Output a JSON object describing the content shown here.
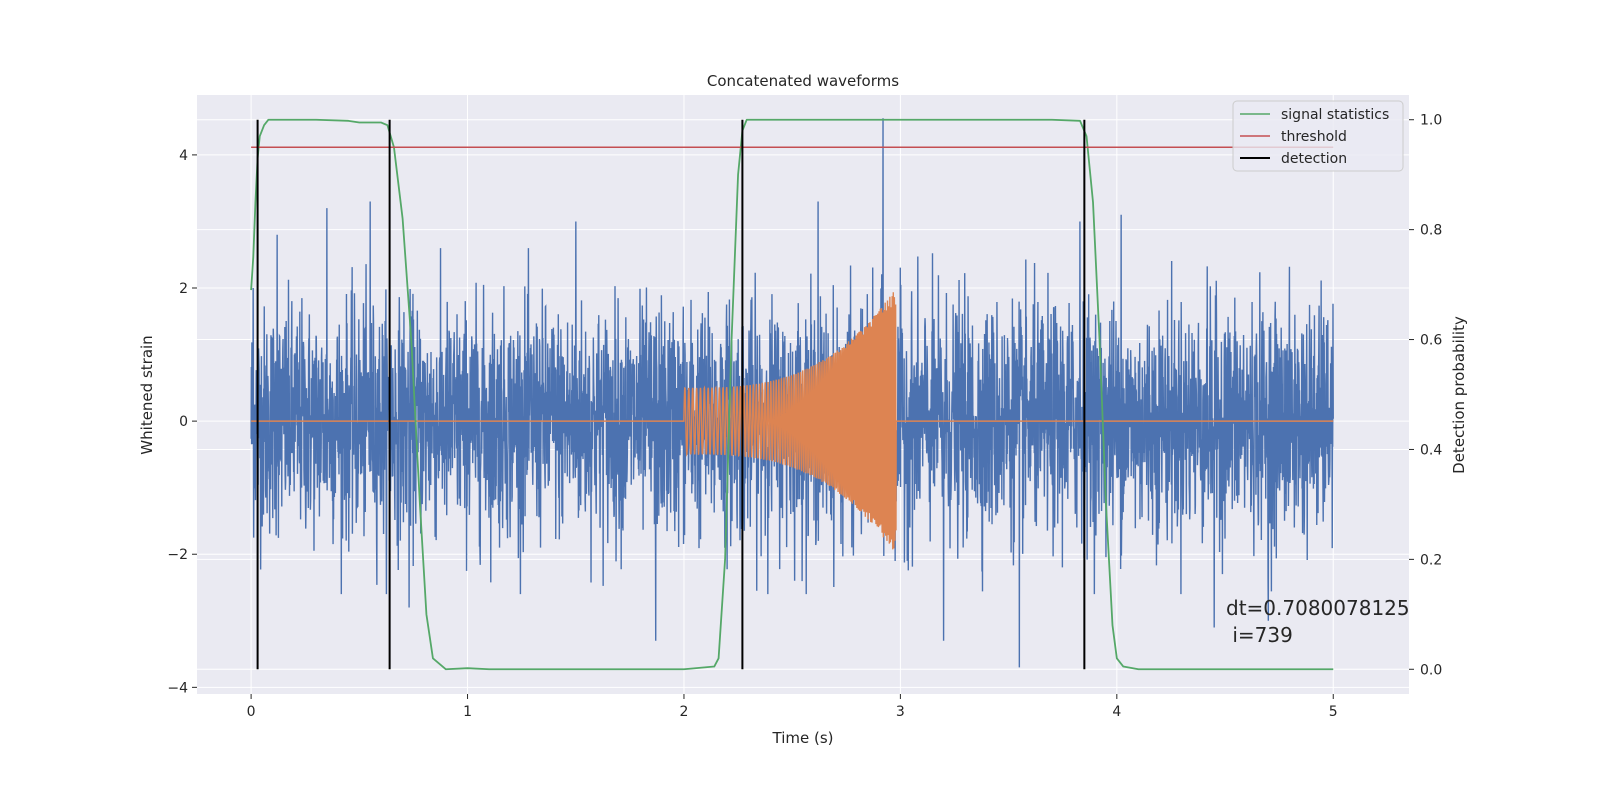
{
  "chart_data": {
    "type": "line",
    "title": "Concatenated waveforms",
    "xlabel": "Time (s)",
    "ylabel": "Whitened strain",
    "ylabel_right": "Detection probability",
    "xlim": [
      -0.25,
      5.35
    ],
    "ylim": [
      -4.1,
      4.9
    ],
    "ylim_right": [
      -0.045,
      1.045
    ],
    "x_ticks": [
      0,
      1,
      2,
      3,
      4,
      5
    ],
    "y_ticks": [
      -4,
      -2,
      0,
      2,
      4
    ],
    "y_ticks_right": [
      0.0,
      0.2,
      0.4,
      0.6,
      0.8,
      1.0
    ],
    "x_tick_labels": [
      "0",
      "1",
      "2",
      "3",
      "4",
      "5"
    ],
    "y_tick_labels": [
      "−4",
      "−2",
      "0",
      "2",
      "4"
    ],
    "y_tick_labels_right": [
      "0.0",
      "0.2",
      "0.4",
      "0.6",
      "0.8",
      "1.0"
    ],
    "grid": true,
    "legend_position": "top-right",
    "colors": {
      "background": "#eaeaf2",
      "grid": "#ffffff",
      "strain": "#4c72b0",
      "injection": "#dd8452",
      "signal_statistics": "#55a868",
      "threshold": "#c44e52",
      "detection": "#000000"
    },
    "series": [
      {
        "name": "",
        "axis": "left",
        "description_kind": "noise",
        "x_range": [
          0,
          5
        ],
        "amplitude": 1.0,
        "peaks": [
          {
            "x": 0.01,
            "y": 2.0
          },
          {
            "x": 0.12,
            "y": 2.8
          },
          {
            "x": 0.35,
            "y": 3.2
          },
          {
            "x": 0.55,
            "y": 3.3
          },
          {
            "x": 1.5,
            "y": 3.0
          },
          {
            "x": 1.87,
            "y": -3.3
          },
          {
            "x": 2.62,
            "y": 3.3
          },
          {
            "x": 2.92,
            "y": 4.55
          },
          {
            "x": 3.2,
            "y": -3.3
          },
          {
            "x": 3.55,
            "y": -3.7
          },
          {
            "x": 3.83,
            "y": 3.0
          },
          {
            "x": 4.02,
            "y": 3.1
          },
          {
            "x": 4.45,
            "y": -3.1
          },
          {
            "x": 4.7,
            "y": -3.0
          },
          {
            "x": 0.73,
            "y": -2.8
          }
        ]
      },
      {
        "name": "",
        "axis": "left",
        "description_kind": "chirp",
        "x_range": [
          0,
          5
        ],
        "chirp_start": 2.0,
        "chirp_end": 2.98,
        "amplitude_start": 0.5,
        "amplitude_end": 2.0
      },
      {
        "name": "signal statistics",
        "axis": "right",
        "x": [
          0,
          0.01,
          0.02,
          0.03,
          0.04,
          0.06,
          0.08,
          0.1,
          0.3,
          0.45,
          0.5,
          0.6,
          0.63,
          0.66,
          0.7,
          0.74,
          0.78,
          0.81,
          0.84,
          0.9,
          1.0,
          1.1,
          1.5,
          2.0,
          2.14,
          2.16,
          2.19,
          2.22,
          2.25,
          2.27,
          2.29,
          2.32,
          2.4,
          3.0,
          3.7,
          3.83,
          3.86,
          3.89,
          3.92,
          3.95,
          3.98,
          4.0,
          4.03,
          4.1,
          5.0
        ],
        "y": [
          0.69,
          0.75,
          0.85,
          0.93,
          0.97,
          0.99,
          1.0,
          1.0,
          1.0,
          0.998,
          0.995,
          0.995,
          0.99,
          0.95,
          0.82,
          0.6,
          0.3,
          0.1,
          0.02,
          0.0,
          0.002,
          0.0,
          0.0,
          0.0,
          0.005,
          0.02,
          0.2,
          0.6,
          0.9,
          0.98,
          1.0,
          1.0,
          1.0,
          1.0,
          1.0,
          0.998,
          0.97,
          0.85,
          0.6,
          0.3,
          0.08,
          0.02,
          0.005,
          0.0,
          0.0
        ]
      },
      {
        "name": "threshold",
        "axis": "right",
        "x": [
          0,
          5
        ],
        "y": [
          0.95,
          0.95
        ]
      },
      {
        "name": "detection",
        "axis": "right",
        "kind": "vlines",
        "x": [
          0.03,
          0.64,
          2.27,
          3.85
        ],
        "ymin": 0.0,
        "ymax": 1.0
      }
    ],
    "legend": [
      "signal statistics",
      "threshold",
      "detection"
    ],
    "annotation": {
      "line1": "dt=0.7080078125",
      "line2": " i=739",
      "x": 4.5,
      "y_right": 0.1
    }
  }
}
